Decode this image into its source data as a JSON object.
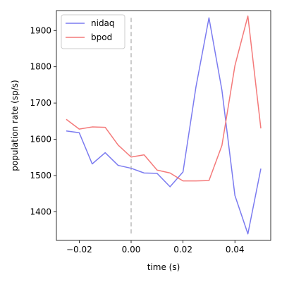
{
  "chart_data": {
    "type": "line",
    "xlabel": "time (s)",
    "ylabel": "population rate (sp/s)",
    "xlim": [
      -0.0288,
      0.0538
    ],
    "ylim": [
      1321,
      1955
    ],
    "x_ticks": [
      -0.02,
      0.0,
      0.02,
      0.04
    ],
    "x_tick_labels": [
      "−0.02",
      "0.00",
      "0.02",
      "0.04"
    ],
    "y_ticks": [
      1400,
      1500,
      1600,
      1700,
      1800,
      1900
    ],
    "y_tick_labels": [
      "1400",
      "1500",
      "1600",
      "1700",
      "1800",
      "1900"
    ],
    "grid": false,
    "legend_position": "top-left",
    "vline": {
      "x": 0.0,
      "y_range": [
        1340,
        1935
      ],
      "color": "#bbbbbb",
      "style": "dashed"
    },
    "series": [
      {
        "name": "nidaq",
        "color": "#7b7bf0",
        "x": [
          -0.025,
          -0.02,
          -0.015,
          -0.01,
          -0.005,
          0.0,
          0.005,
          0.01,
          0.015,
          0.02,
          0.025,
          0.03,
          0.035,
          0.04,
          0.045,
          0.05
        ],
        "y": [
          1623,
          1618,
          1532,
          1563,
          1528,
          1520,
          1507,
          1506,
          1469,
          1510,
          1745,
          1935,
          1735,
          1445,
          1339,
          1519
        ]
      },
      {
        "name": "bpod",
        "color": "#f47a7a",
        "x": [
          -0.025,
          -0.02,
          -0.015,
          -0.01,
          -0.005,
          0.0,
          0.005,
          0.01,
          0.015,
          0.02,
          0.025,
          0.03,
          0.035,
          0.04,
          0.045,
          0.05
        ],
        "y": [
          1655,
          1628,
          1634,
          1633,
          1584,
          1551,
          1557,
          1515,
          1507,
          1485,
          1485,
          1486,
          1583,
          1803,
          1940,
          1630
        ]
      }
    ]
  }
}
